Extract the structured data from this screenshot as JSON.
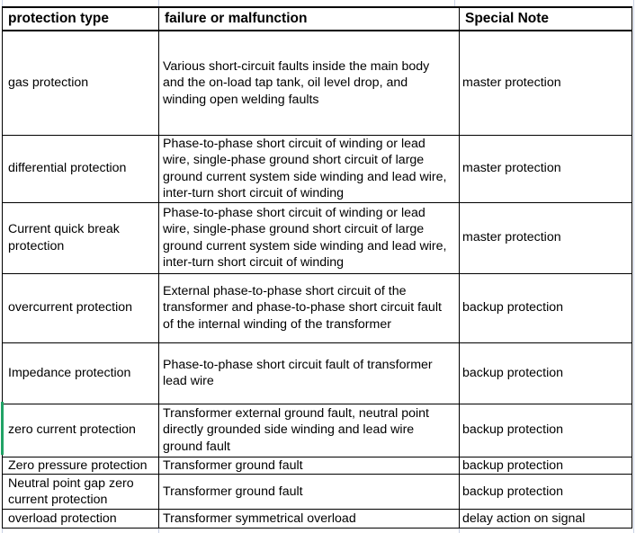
{
  "table": {
    "headers": {
      "protection_type": "protection type",
      "failure": "failure or malfunction",
      "special_note": "Special Note"
    },
    "rows": [
      {
        "protection_type": "gas protection",
        "failure": "Various short-circuit faults inside the main body\nand the on-load tap tank, oil level drop, and\nwinding open welding faults",
        "special_note": "master protection"
      },
      {
        "protection_type": "differential protection",
        "failure": "Phase-to-phase short circuit of winding or lead\nwire, single-phase ground short circuit of large\nground current system side winding and lead wire,\ninter-turn short circuit of winding",
        "special_note": "master protection"
      },
      {
        "protection_type": "Current quick break\nprotection",
        "failure": "Phase-to-phase short circuit of winding or lead\nwire, single-phase ground short circuit of large\nground current system side winding and lead wire,\ninter-turn short circuit of winding",
        "special_note": "master protection"
      },
      {
        "protection_type": "overcurrent protection",
        "failure": "External phase-to-phase short circuit of the\ntransformer and phase-to-phase short circuit fault\nof the internal winding of the transformer",
        "special_note": "backup protection"
      },
      {
        "protection_type": "Impedance protection",
        "failure": "Phase-to-phase short circuit fault of transformer\nlead wire",
        "special_note": "backup protection"
      },
      {
        "protection_type": "zero current protection",
        "failure": "Transformer external ground fault, neutral point\ndirectly grounded side winding and lead wire\nground fault",
        "special_note": "backup protection"
      },
      {
        "protection_type": "Zero pressure protection",
        "failure": "Transformer ground fault",
        "special_note": "backup protection"
      },
      {
        "protection_type": "Neutral point gap zero\ncurrent protection",
        "failure": "Transformer ground fault",
        "special_note": "backup protection"
      },
      {
        "protection_type": "overload protection",
        "failure": "Transformer symmetrical overload",
        "special_note": "delay action on signal"
      }
    ]
  },
  "colors": {
    "text": "#000000",
    "cell_border": "#000000",
    "gridline": "#c9d1e4",
    "selection_green": "#21a366"
  }
}
